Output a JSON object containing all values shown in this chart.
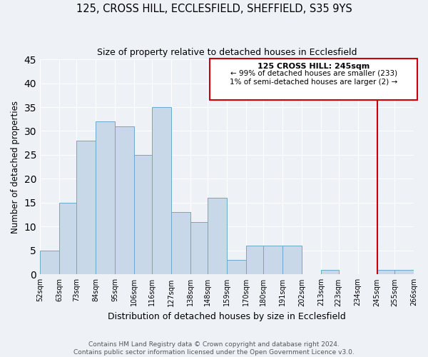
{
  "title": "125, CROSS HILL, ECCLESFIELD, SHEFFIELD, S35 9YS",
  "subtitle": "Size of property relative to detached houses in Ecclesfield",
  "xlabel": "Distribution of detached houses by size in Ecclesfield",
  "ylabel": "Number of detached properties",
  "bin_edges": [
    52,
    63,
    73,
    84,
    95,
    106,
    116,
    127,
    138,
    148,
    159,
    170,
    180,
    191,
    202,
    213,
    223,
    234,
    245,
    255,
    266
  ],
  "bar_heights": [
    5,
    15,
    28,
    32,
    31,
    25,
    35,
    13,
    11,
    16,
    3,
    6,
    6,
    6,
    0,
    1,
    0,
    0,
    1,
    1
  ],
  "bar_color": "#c8d8e8",
  "bar_edge_color": "#6aaac8",
  "ylim": [
    0,
    45
  ],
  "yticks": [
    0,
    5,
    10,
    15,
    20,
    25,
    30,
    35,
    40,
    45
  ],
  "x_tick_labels": [
    "52sqm",
    "63sqm",
    "73sqm",
    "84sqm",
    "95sqm",
    "106sqm",
    "116sqm",
    "127sqm",
    "138sqm",
    "148sqm",
    "159sqm",
    "170sqm",
    "180sqm",
    "191sqm",
    "202sqm",
    "213sqm",
    "223sqm",
    "234sqm",
    "245sqm",
    "255sqm",
    "266sqm"
  ],
  "vline_x": 245,
  "vline_color": "#cc0000",
  "annotation_title": "125 CROSS HILL: 245sqm",
  "annotation_line1": "← 99% of detached houses are smaller (233)",
  "annotation_line2": "1% of semi-detached houses are larger (2) →",
  "annotation_box_color": "#cc0000",
  "footer_line1": "Contains HM Land Registry data © Crown copyright and database right 2024.",
  "footer_line2": "Contains public sector information licensed under the Open Government Licence v3.0.",
  "bg_color": "#eef2f7"
}
